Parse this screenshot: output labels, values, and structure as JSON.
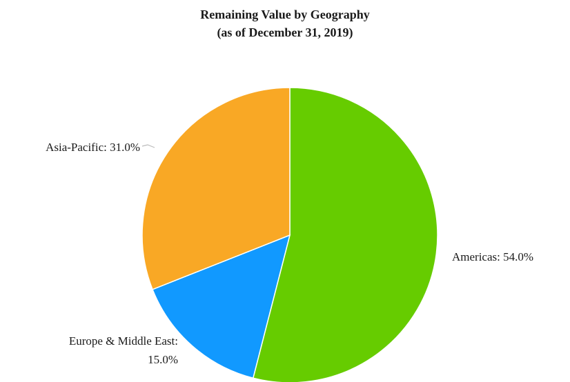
{
  "chart_data": {
    "type": "pie",
    "title": [
      "Remaining Value by Geography",
      "(as of December 31, 2019)"
    ],
    "slices": [
      {
        "label": "Americas: 54.0%",
        "value": 54.0,
        "color": "#66cc00"
      },
      {
        "label": [
          "Europe & Middle East:",
          "15.0%"
        ],
        "value": 15.0,
        "color": "#1199ff"
      },
      {
        "label": "Asia-Pacific: 31.0%",
        "value": 31.0,
        "color": "#f9a825"
      }
    ],
    "start": "12 o'clock",
    "direction": "clockwise",
    "legend": "none",
    "labels": "outside"
  }
}
